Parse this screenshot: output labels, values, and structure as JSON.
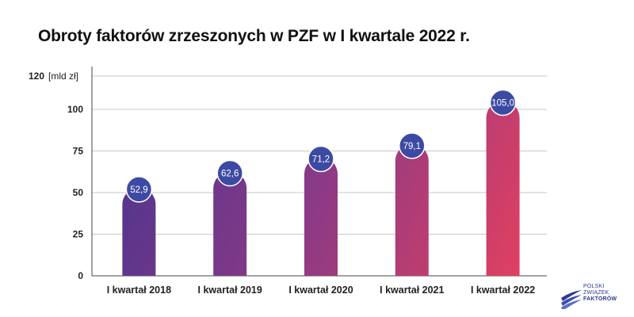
{
  "chart_data": {
    "type": "bar",
    "title": "Obroty faktorów zrzeszonych w PZF w I kwartale 2022 r.",
    "ylabel": "[mld zł]",
    "xlabel": "",
    "categories": [
      "I kwartał 2018",
      "I kwartał 2019",
      "I kwartał 2020",
      "I kwartał 2021",
      "I kwartał 2022"
    ],
    "values": [
      52.9,
      62.6,
      71.2,
      79.1,
      105.0
    ],
    "value_labels": [
      "52,9",
      "62,6",
      "71,2",
      "79,1",
      "105,0"
    ],
    "ylim": [
      0,
      120
    ],
    "yticks": [
      0,
      25,
      50,
      75,
      100,
      120
    ],
    "ytick_labels": [
      "0",
      "25",
      "50",
      "75",
      "100",
      "120"
    ],
    "grid": true,
    "legend": "none",
    "colors": {
      "bar_gradient_start": "#45338f",
      "bar_gradient_end": "#e8405e",
      "label_circle": "#3d4aa3",
      "label_circle_border": "#ffffff",
      "grid": "#c8c8c8"
    }
  },
  "logo": {
    "line1": "POLSKI",
    "line2": "ZWIĄZEK",
    "line3": "FAKTORÓW",
    "icon": "swoosh-logo-icon"
  }
}
